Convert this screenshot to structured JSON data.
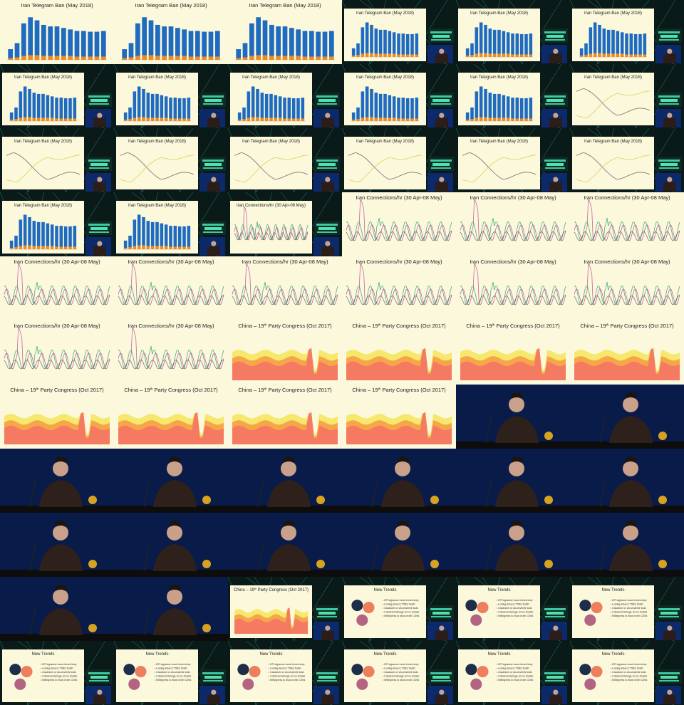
{
  "titles": {
    "telegram": "Iran Telegram Ban (May 2018)",
    "connections": "Iran Connections/hr (30 Apr-08 May)",
    "congress_prefix": "China – 19",
    "congress_sup": "th",
    "congress_suffix": " Party Congress (Oct 2017)",
    "trends": "New Trends"
  },
  "trends_bullets": [
    "DPI-bypasser mooir-Iemes keey",
    "Lurking-detoer (TTBb) Tealth",
    "Casabarm or circumventie tools",
    "Collateral damage-vol so chalias",
    "Willingness to druck echin CDNs"
  ],
  "colors": {
    "slide_bg": "#fbf8dc",
    "bar_blue": "#1f6bbf",
    "bar_orange": "#f08a1e",
    "line_pink": "#c0509a",
    "line_green": "#3aa37a",
    "line_gray": "#555555",
    "line_yellow": "#d9d24a",
    "area_red": "#f47a62",
    "area_orange": "#f6a54a",
    "area_yellow": "#f6e86c",
    "stage_blue": "#0c2a6b",
    "circle_navy": "#1e2d4a",
    "circle_coral": "#ee7f5e",
    "circle_mauve": "#b46483"
  },
  "chart_data": {
    "type": "bar",
    "title": "Iran Telegram Ban (May 2018)",
    "series": [
      {
        "values": [
          14,
          22,
          48,
          56,
          52,
          46,
          44,
          44,
          42,
          40,
          38,
          38,
          37,
          37,
          38
        ]
      },
      {
        "values": [
          2,
          3,
          5,
          6,
          6,
          5,
          5,
          5,
          5,
          5,
          4,
          4,
          4,
          4,
          4
        ]
      }
    ],
    "ylim": [
      0,
      60
    ]
  },
  "tile_layout": [
    [
      "T",
      "T",
      "T",
      "TS",
      "TS",
      "TS"
    ],
    [
      "TS",
      "TS",
      "TS",
      "TS",
      "TS",
      "LS"
    ],
    [
      "LS",
      "LS",
      "LS",
      "LS",
      "LS",
      "LS"
    ],
    [
      "TS",
      "TS",
      "CS",
      "C",
      "C",
      "C"
    ],
    [
      "C",
      "C",
      "C",
      "C",
      "C",
      "C"
    ],
    [
      "C",
      "C",
      "A",
      "A",
      "A",
      "A"
    ],
    [
      "A",
      "A",
      "A",
      "A",
      "P",
      "P"
    ],
    [
      "P",
      "P",
      "P",
      "P",
      "P",
      "P"
    ],
    [
      "P",
      "P",
      "P",
      "P",
      "P",
      "P"
    ],
    [
      "P",
      "P",
      "AS",
      "NS",
      "NS",
      "NS"
    ],
    [
      "NS",
      "NS",
      "NS",
      "NS",
      "NS",
      "NS"
    ]
  ]
}
